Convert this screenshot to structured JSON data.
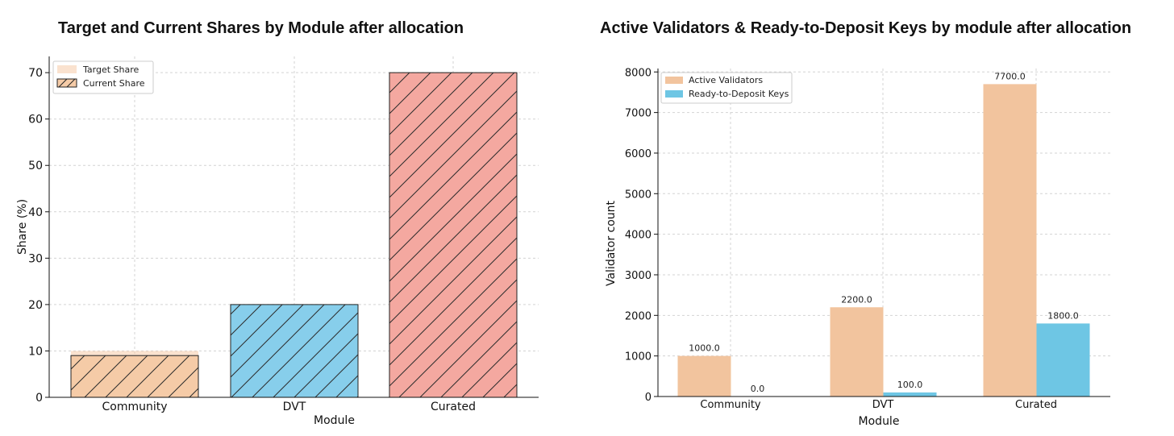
{
  "chart_data": [
    {
      "type": "bar",
      "title": "Target and Current Shares by Module after allocation",
      "xlabel": "Module",
      "ylabel": "Share (%)",
      "categories": [
        "Community",
        "DVT",
        "Curated"
      ],
      "ylim": [
        0,
        73.5
      ],
      "yticks": [
        0,
        10,
        20,
        30,
        40,
        50,
        60,
        70
      ],
      "grid": true,
      "legend_position": "top-left",
      "bar_colors": [
        "#f5cba7",
        "#87ceeb",
        "#f4a8a0"
      ],
      "series": [
        {
          "name": "Target Share",
          "values": [
            10,
            20,
            70
          ],
          "style": "solid-translucent"
        },
        {
          "name": "Current Share",
          "values": [
            9,
            20,
            70
          ],
          "style": "hatched"
        }
      ]
    },
    {
      "type": "bar",
      "title": "Active Validators & Ready-to-Deposit Keys by module after allocation",
      "xlabel": "Module",
      "ylabel": "Validator count",
      "categories": [
        "Community",
        "DVT",
        "Curated"
      ],
      "ylim": [
        0,
        8085
      ],
      "yticks": [
        0,
        1000,
        2000,
        3000,
        4000,
        5000,
        6000,
        7000,
        8000
      ],
      "grid": true,
      "legend_position": "top-left",
      "series": [
        {
          "name": "Active Validators",
          "color": "#f2c49e",
          "values": [
            1000,
            2200,
            7700
          ],
          "labels": [
            "1000.0",
            "2200.0",
            "7700.0"
          ]
        },
        {
          "name": "Ready-to-Deposit Keys",
          "color": "#6ec6e4",
          "values": [
            0,
            100,
            1800
          ],
          "labels": [
            "0.0",
            "100.0",
            "1800.0"
          ]
        }
      ]
    }
  ]
}
